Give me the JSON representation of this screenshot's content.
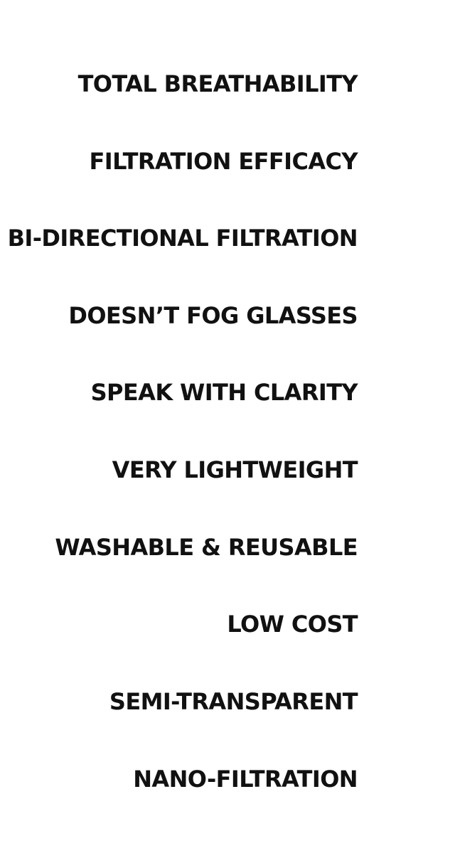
{
  "features": [
    "TOTAL BREATHABILITY",
    "FILTRATION EFFICACY",
    "BI-DIRECTIONAL FILTRATION",
    "DOESN’T FOG GLASSES",
    "SPEAK WITH CLARITY",
    "VERY LIGHTWEIGHT",
    "WASHABLE & REUSABLE",
    "LOW COST",
    "SEMI-TRANSPARENT",
    "NANO-FILTRATION"
  ],
  "colors": {
    "text": "#111111",
    "background": "#ffffff"
  }
}
